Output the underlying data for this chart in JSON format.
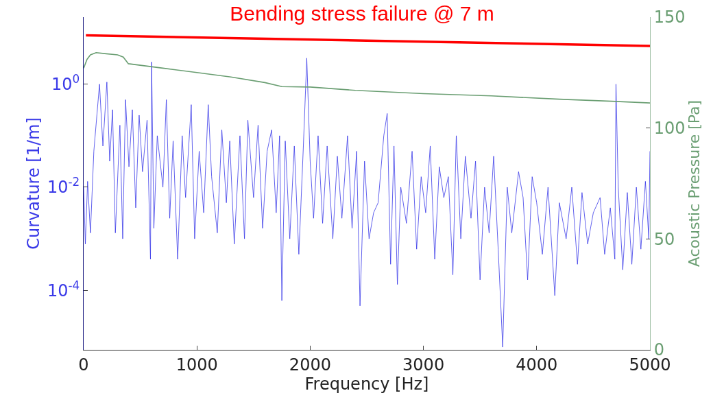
{
  "chart_data": {
    "type": "line",
    "title": "Bending stress failure @ 7 m",
    "xlabel": "Frequency [Hz]",
    "ylabel": "Curvature [1/m]",
    "y2label": "Acoustic Pressure [Pa]",
    "log": "y",
    "marker": "none",
    "line_style": "solid",
    "xlim": [
      0,
      5000
    ],
    "xticks": [
      0,
      1000,
      2000,
      3000,
      4000,
      5000
    ],
    "ylim": [
      7e-06,
      20
    ],
    "yticks": [
      {
        "value": 0.0001,
        "label": "10$^{-4}$"
      },
      {
        "value": 0.01,
        "label": "10$^{-2}$"
      },
      {
        "value": 1,
        "label": "10$^{0}$"
      }
    ],
    "y2lim": [
      0,
      150
    ],
    "y2ticks": [
      0,
      50,
      100,
      150
    ],
    "series": [
      {
        "color": "#3a3ae8",
        "x": [
          0,
          15,
          35,
          60,
          90,
          140,
          170,
          205,
          230,
          255,
          280,
          320,
          345,
          370,
          400,
          430,
          460,
          490,
          520,
          560,
          590,
          600,
          620,
          650,
          700,
          730,
          760,
          790,
          830,
          870,
          900,
          950,
          980,
          1020,
          1060,
          1100,
          1130,
          1180,
          1220,
          1260,
          1290,
          1330,
          1380,
          1420,
          1450,
          1500,
          1540,
          1580,
          1620,
          1660,
          1700,
          1730,
          1750,
          1780,
          1820,
          1860,
          1900,
          1940,
          1970,
          2000,
          2030,
          2070,
          2110,
          2150,
          2200,
          2240,
          2280,
          2330,
          2370,
          2410,
          2440,
          2480,
          2520,
          2560,
          2600,
          2650,
          2680,
          2710,
          2740,
          2770,
          2800,
          2850,
          2900,
          2940,
          2980,
          3020,
          3060,
          3100,
          3140,
          3180,
          3220,
          3260,
          3290,
          3330,
          3370,
          3420,
          3460,
          3500,
          3540,
          3580,
          3620,
          3660,
          3700,
          3740,
          3780,
          3840,
          3880,
          3920,
          3960,
          4000,
          4050,
          4100,
          4160,
          4200,
          4260,
          4310,
          4360,
          4400,
          4450,
          4500,
          4560,
          4600,
          4650,
          4690,
          4700,
          4720,
          4760,
          4800,
          4840,
          4880,
          4920,
          4960,
          4990,
          5000
        ],
        "values": [
          0.01,
          0.00079,
          0.013,
          0.0013,
          0.05,
          1,
          0.063,
          1.1,
          0.032,
          0.32,
          0.0013,
          0.16,
          0.001,
          0.5,
          0.025,
          0.32,
          0.004,
          0.25,
          0.02,
          0.2,
          0.0004,
          2.7,
          0.0016,
          0.1,
          0.01,
          0.5,
          0.0025,
          0.079,
          0.0004,
          0.1,
          0.0063,
          0.4,
          0.001,
          0.05,
          0.0032,
          0.4,
          0.016,
          0.0013,
          0.13,
          0.005,
          0.079,
          0.00079,
          0.1,
          0.001,
          0.2,
          0.0063,
          0.16,
          0.0016,
          0.05,
          0.13,
          0.0032,
          0.1,
          6.3e-05,
          0.079,
          0.001,
          0.063,
          0.0005,
          0.063,
          3.2,
          0.032,
          0.0025,
          0.1,
          0.002,
          0.063,
          0.001,
          0.04,
          0.0025,
          0.1,
          0.0016,
          0.05,
          5e-05,
          0.032,
          0.001,
          0.0032,
          0.005,
          0.1,
          0.27,
          0.00032,
          0.063,
          0.00013,
          0.01,
          0.002,
          0.05,
          0.00063,
          0.016,
          0.0032,
          0.063,
          0.0004,
          0.025,
          0.0063,
          0.016,
          0.0002,
          0.1,
          0.001,
          0.04,
          0.0025,
          0.032,
          0.00016,
          0.01,
          0.0013,
          0.04,
          0.00063,
          7.9e-06,
          0.01,
          0.0013,
          0.02,
          0.0063,
          0.00016,
          0.016,
          0.005,
          0.0005,
          0.01,
          7.9e-05,
          0.005,
          0.001,
          0.01,
          0.00032,
          0.0079,
          0.00079,
          0.0032,
          0.0063,
          0.0005,
          0.004,
          0.0004,
          1,
          0.01,
          0.00025,
          0.0079,
          0.00032,
          0.01,
          0.00063,
          0.013,
          0.001,
          0.05
        ]
      },
      {
        "color": "#6a9e72",
        "axis": "y2",
        "x": [
          0,
          30,
          60,
          110,
          200,
          300,
          350,
          395,
          700,
          1000,
          1300,
          1600,
          1750,
          2000,
          2400,
          3000,
          3600,
          4200,
          4700,
          5000
        ],
        "values": [
          127,
          131,
          133,
          134,
          133.5,
          133,
          132,
          129,
          127,
          125,
          123,
          120.5,
          118.7,
          118.5,
          117,
          115.5,
          114.5,
          113,
          112,
          111.3
        ]
      },
      {
        "color": "#ff0000",
        "axis": "y2",
        "x": [
          20,
          5000
        ],
        "values": [
          141.8,
          137
        ]
      }
    ]
  }
}
